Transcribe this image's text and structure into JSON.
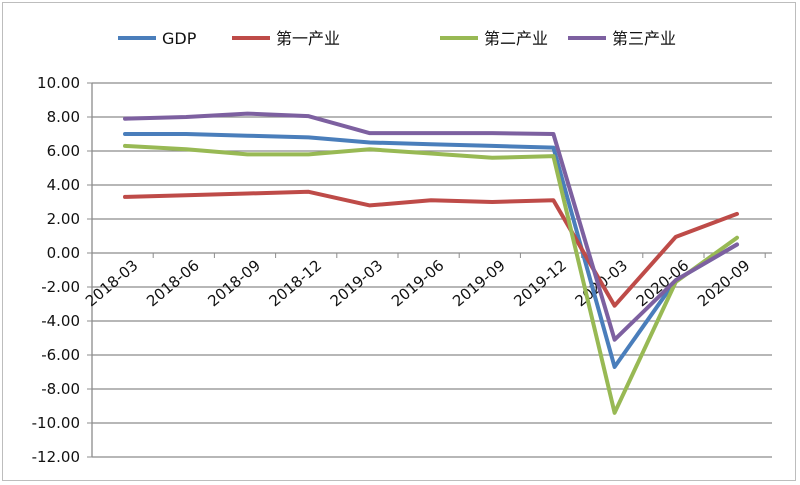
{
  "chart_data": {
    "type": "line",
    "title": "",
    "xlabel": "",
    "ylabel": "",
    "categories": [
      "2018-03",
      "2018-06",
      "2018-09",
      "2018-12",
      "2019-03",
      "2019-06",
      "2019-09",
      "2019-12",
      "2020-03",
      "2020-06",
      "2020-09"
    ],
    "ylim": [
      -12,
      10
    ],
    "yticks": [
      "10.00",
      "8.00",
      "6.00",
      "4.00",
      "2.00",
      "0.00",
      "-2.00",
      "-4.00",
      "-6.00",
      "-8.00",
      "-10.00",
      "-12.00"
    ],
    "grid": true,
    "legend_position": "top",
    "series": [
      {
        "name": "GDP",
        "color": "#4a7ebb",
        "values": [
          7.0,
          7.0,
          6.9,
          6.8,
          6.5,
          6.4,
          6.3,
          6.2,
          -6.7,
          -1.6,
          0.5
        ]
      },
      {
        "name": "第一产业",
        "color": "#be4b48",
        "values": [
          3.3,
          3.4,
          3.5,
          3.6,
          2.8,
          3.1,
          3.0,
          3.1,
          -3.1,
          0.95,
          2.3
        ]
      },
      {
        "name": "第二产业",
        "color": "#98b954",
        "values": [
          6.3,
          6.1,
          5.8,
          5.8,
          6.1,
          5.85,
          5.6,
          5.7,
          -9.4,
          -1.7,
          0.9
        ]
      },
      {
        "name": "第三产业",
        "color": "#7d60a0",
        "values": [
          7.9,
          8.0,
          8.2,
          8.05,
          7.05,
          7.05,
          7.05,
          7.0,
          -5.1,
          -1.6,
          0.5
        ]
      }
    ]
  }
}
